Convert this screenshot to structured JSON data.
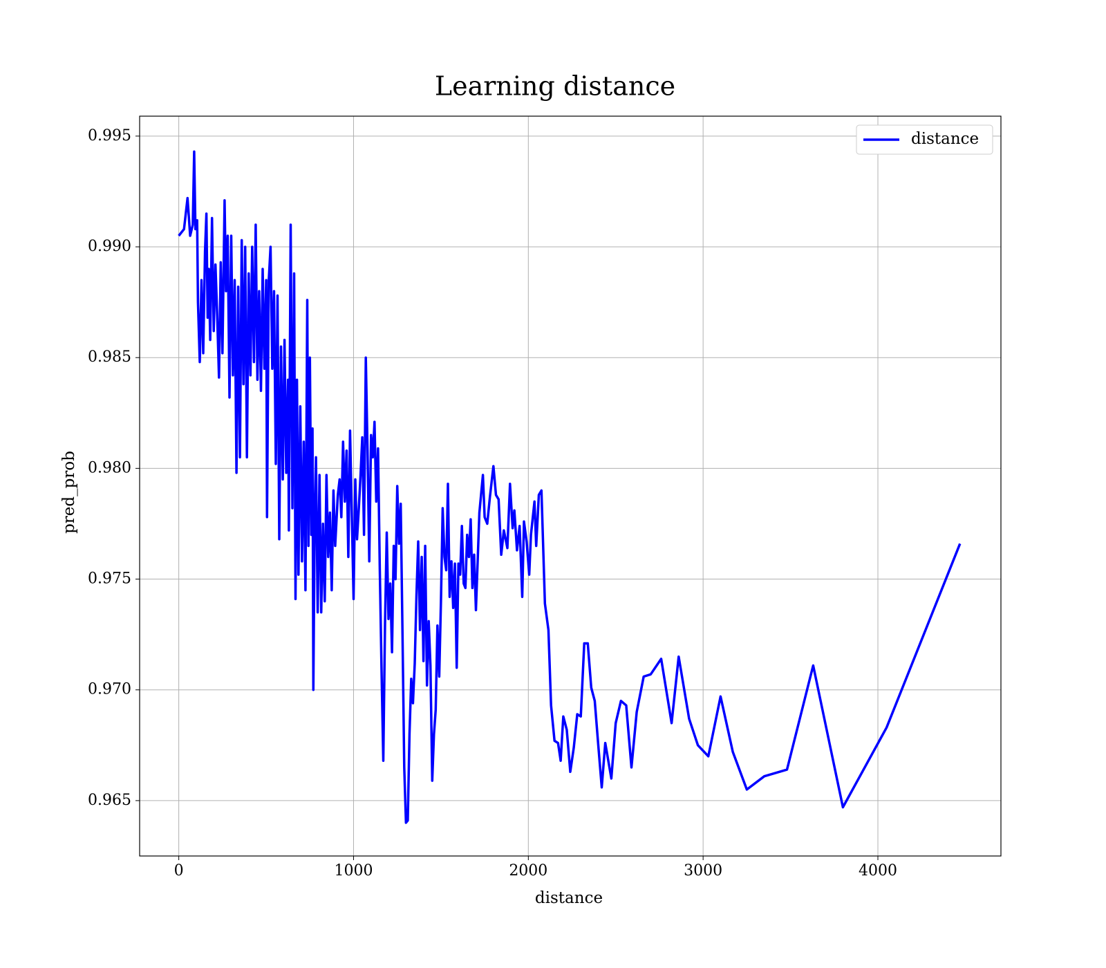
{
  "chart_data": {
    "type": "line",
    "title": "Learning distance",
    "x_label": "distance",
    "y_label": "pred_prob",
    "xlim": [
      -224,
      4704
    ],
    "ylim": [
      0.9625,
      0.9959
    ],
    "xticks": [
      0,
      1000,
      2000,
      3000,
      4000
    ],
    "yticks": [
      0.965,
      {
        "value": 0.97,
        "label": "0.970"
      },
      0.975,
      {
        "value": 0.98,
        "label": "0.980"
      },
      0.985,
      {
        "value": 0.99,
        "label": "0.990"
      },
      0.995
    ],
    "grid": true,
    "legend": "upper right",
    "series": [
      {
        "name": "distance",
        "color": "#0000ff",
        "x": [
          0,
          30,
          50,
          65,
          80,
          88,
          95,
          105,
          110,
          120,
          130,
          140,
          150,
          158,
          165,
          172,
          180,
          190,
          200,
          210,
          220,
          230,
          240,
          250,
          262,
          270,
          280,
          290,
          300,
          310,
          320,
          330,
          340,
          350,
          360,
          370,
          380,
          390,
          400,
          410,
          420,
          430,
          440,
          450,
          460,
          470,
          480,
          490,
          500,
          505,
          515,
          525,
          535,
          545,
          555,
          565,
          575,
          585,
          595,
          605,
          615,
          625,
          630,
          640,
          650,
          660,
          668,
          676,
          685,
          695,
          705,
          715,
          725,
          735,
          742,
          750,
          758,
          765,
          770,
          778,
          785,
          795,
          805,
          815,
          825,
          835,
          845,
          855,
          865,
          875,
          885,
          895,
          910,
          920,
          930,
          940,
          950,
          960,
          970,
          980,
          990,
          1000,
          1010,
          1020,
          1030,
          1040,
          1050,
          1060,
          1070,
          1080,
          1090,
          1100,
          1110,
          1120,
          1130,
          1140,
          1150,
          1160,
          1170,
          1180,
          1190,
          1200,
          1210,
          1220,
          1230,
          1240,
          1250,
          1260,
          1270,
          1280,
          1290,
          1300,
          1310,
          1320,
          1330,
          1340,
          1350,
          1360,
          1370,
          1380,
          1390,
          1400,
          1410,
          1420,
          1430,
          1440,
          1450,
          1460,
          1470,
          1480,
          1490,
          1500,
          1510,
          1520,
          1530,
          1540,
          1550,
          1560,
          1570,
          1580,
          1590,
          1600,
          1610,
          1620,
          1630,
          1640,
          1650,
          1660,
          1670,
          1680,
          1690,
          1700,
          1720,
          1740,
          1750,
          1765,
          1780,
          1800,
          1815,
          1830,
          1845,
          1860,
          1880,
          1895,
          1910,
          1920,
          1935,
          1950,
          1965,
          1975,
          1990,
          2005,
          2015,
          2035,
          2045,
          2060,
          2075,
          2095,
          2115,
          2130,
          2150,
          2170,
          2185,
          2200,
          2220,
          2240,
          2260,
          2280,
          2300,
          2320,
          2340,
          2360,
          2380,
          2400,
          2420,
          2440,
          2475,
          2500,
          2530,
          2560,
          2590,
          2620,
          2660,
          2700,
          2760,
          2820,
          2860,
          2920,
          2970,
          3030,
          3100,
          3170,
          3250,
          3350,
          3480,
          3630,
          3800,
          4050,
          4470
        ],
        "values": [
          0.9905,
          0.9908,
          0.9922,
          0.9905,
          0.991,
          0.9943,
          0.9908,
          0.9912,
          0.9875,
          0.9848,
          0.9885,
          0.9852,
          0.9898,
          0.9915,
          0.9868,
          0.989,
          0.9858,
          0.9913,
          0.9862,
          0.9892,
          0.9868,
          0.9841,
          0.9893,
          0.9852,
          0.9921,
          0.988,
          0.9905,
          0.9832,
          0.9905,
          0.9842,
          0.9885,
          0.9798,
          0.9882,
          0.9805,
          0.9903,
          0.9838,
          0.99,
          0.9805,
          0.9888,
          0.9842,
          0.99,
          0.9848,
          0.991,
          0.984,
          0.988,
          0.9835,
          0.989,
          0.9845,
          0.9885,
          0.9778,
          0.9885,
          0.99,
          0.9845,
          0.988,
          0.9802,
          0.9878,
          0.9768,
          0.9855,
          0.9795,
          0.9858,
          0.9798,
          0.984,
          0.9772,
          0.991,
          0.9782,
          0.9888,
          0.9741,
          0.984,
          0.9752,
          0.9828,
          0.9758,
          0.9812,
          0.9745,
          0.9876,
          0.9765,
          0.985,
          0.977,
          0.9818,
          0.97,
          0.978,
          0.9805,
          0.9735,
          0.9797,
          0.9735,
          0.9775,
          0.974,
          0.9797,
          0.976,
          0.978,
          0.9745,
          0.979,
          0.9765,
          0.9788,
          0.9795,
          0.9778,
          0.9812,
          0.9785,
          0.9808,
          0.976,
          0.9817,
          0.978,
          0.9741,
          0.9795,
          0.9768,
          0.9782,
          0.9797,
          0.9814,
          0.977,
          0.985,
          0.9808,
          0.9758,
          0.9815,
          0.9805,
          0.9821,
          0.9785,
          0.9809,
          0.9755,
          0.971,
          0.9668,
          0.973,
          0.9771,
          0.9732,
          0.9748,
          0.9717,
          0.9765,
          0.975,
          0.9792,
          0.9766,
          0.9784,
          0.9725,
          0.9665,
          0.964,
          0.9641,
          0.968,
          0.9705,
          0.9694,
          0.9712,
          0.9743,
          0.9767,
          0.9727,
          0.976,
          0.9713,
          0.9765,
          0.9702,
          0.9731,
          0.9711,
          0.9659,
          0.968,
          0.9691,
          0.9729,
          0.9706,
          0.974,
          0.9782,
          0.976,
          0.9754,
          0.9793,
          0.9742,
          0.9758,
          0.9737,
          0.9757,
          0.971,
          0.9757,
          0.9752,
          0.9774,
          0.9748,
          0.9746,
          0.977,
          0.976,
          0.9777,
          0.9746,
          0.9761,
          0.9736,
          0.978,
          0.9797,
          0.9778,
          0.9775,
          0.9787,
          0.9801,
          0.9788,
          0.9786,
          0.9761,
          0.9772,
          0.9764,
          0.9793,
          0.9773,
          0.9781,
          0.9763,
          0.9774,
          0.9742,
          0.9776,
          0.9767,
          0.9752,
          0.977,
          0.9785,
          0.9765,
          0.9788,
          0.979,
          0.9739,
          0.9727,
          0.9693,
          0.9677,
          0.9676,
          0.9668,
          0.9688,
          0.9682,
          0.9663,
          0.9674,
          0.9689,
          0.9688,
          0.9721,
          0.9721,
          0.9701,
          0.9695,
          0.9675,
          0.9656,
          0.9676,
          0.966,
          0.9685,
          0.9695,
          0.9693,
          0.9665,
          0.969,
          0.9706,
          0.9707,
          0.9714,
          0.9685,
          0.9715,
          0.9687,
          0.9675,
          0.967,
          0.9697,
          0.9672,
          0.9655,
          0.9661,
          0.9664,
          0.9711,
          0.9647,
          0.9683,
          0.9766
        ]
      }
    ]
  }
}
